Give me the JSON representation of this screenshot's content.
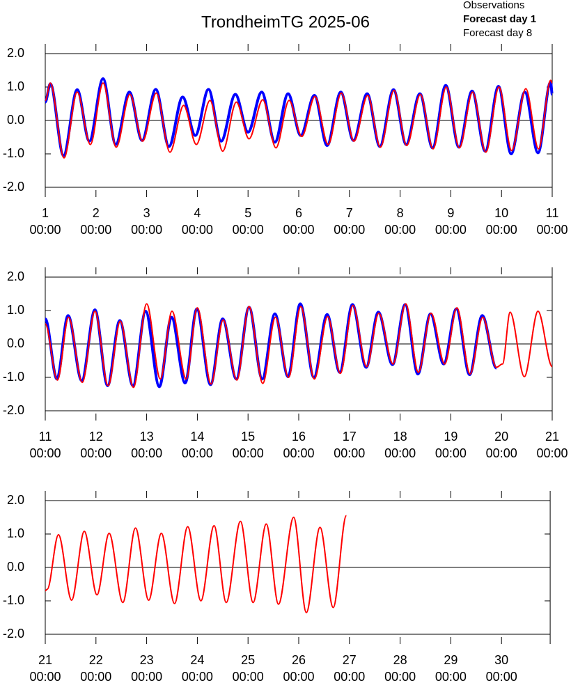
{
  "chart_data": [
    {
      "type": "line",
      "title": "TrondheimTG 2025-06",
      "xlim": [
        1,
        11
      ],
      "ylim": [
        -2,
        2
      ],
      "hline": 0,
      "xticks": [
        {
          "value": 1,
          "label": [
            "1",
            "00:00"
          ]
        },
        {
          "value": 2,
          "label": [
            "2",
            "00:00"
          ]
        },
        {
          "value": 3,
          "label": [
            "3",
            "00:00"
          ]
        },
        {
          "value": 4,
          "label": [
            "4",
            "00:00"
          ]
        },
        {
          "value": 5,
          "label": [
            "5",
            "00:00"
          ]
        },
        {
          "value": 6,
          "label": [
            "6",
            "00:00"
          ]
        },
        {
          "value": 7,
          "label": [
            "7",
            "00:00"
          ]
        },
        {
          "value": 8,
          "label": [
            "8",
            "00:00"
          ]
        },
        {
          "value": 9,
          "label": [
            "9",
            "00:00"
          ]
        },
        {
          "value": 10,
          "label": [
            "10",
            "00:00"
          ]
        },
        {
          "value": 11,
          "label": [
            "11",
            "00:00"
          ]
        }
      ],
      "yticks": [
        {
          "value": 2,
          "label": "2.0"
        },
        {
          "value": 1,
          "label": "1.0"
        },
        {
          "value": 0,
          "label": "0.0"
        },
        {
          "value": -1,
          "label": "-1.0"
        },
        {
          "value": -2,
          "label": "-2.0"
        }
      ],
      "series": [
        {
          "name": "Observations",
          "color": "#000000",
          "width": 1,
          "x": [],
          "values": []
        },
        {
          "name": "Forecast day 1",
          "color": "#0000ff",
          "width": 4,
          "x": [
            1.0,
            1.1,
            1.36,
            1.63,
            1.87,
            2.14,
            2.39,
            2.66,
            2.91,
            3.18,
            3.44,
            3.71,
            3.96,
            4.22,
            4.47,
            4.75,
            5.0,
            5.27,
            5.53,
            5.79,
            6.04,
            6.31,
            6.56,
            6.83,
            7.08,
            7.35,
            7.6,
            7.87,
            8.12,
            8.39,
            8.64,
            8.9,
            9.16,
            9.42,
            9.68,
            9.94,
            10.19,
            10.46,
            10.72,
            10.97,
            11.0
          ],
          "values": [
            0.55,
            1.1,
            -1.05,
            0.92,
            -0.62,
            1.25,
            -0.72,
            0.85,
            -0.6,
            0.93,
            -0.78,
            0.7,
            -0.45,
            0.93,
            -0.62,
            0.78,
            -0.35,
            0.85,
            -0.65,
            0.8,
            -0.45,
            0.75,
            -0.75,
            0.85,
            -0.6,
            0.8,
            -0.78,
            0.92,
            -0.72,
            0.8,
            -0.82,
            1.05,
            -0.8,
            0.88,
            -0.92,
            1.02,
            -1.0,
            0.85,
            -0.97,
            1.15,
            0.78
          ]
        },
        {
          "name": "Forecast day 8",
          "color": "#ff0000",
          "width": 2,
          "x": [
            1.0,
            1.1,
            1.37,
            1.63,
            1.89,
            2.14,
            2.4,
            2.67,
            2.92,
            3.19,
            3.46,
            3.73,
            3.98,
            4.25,
            4.5,
            4.77,
            5.02,
            5.29,
            5.55,
            5.81,
            6.06,
            6.32,
            6.58,
            6.84,
            7.09,
            7.36,
            7.61,
            7.88,
            8.13,
            8.4,
            8.65,
            8.91,
            9.17,
            9.43,
            9.69,
            9.95,
            10.2,
            10.48,
            10.73,
            10.97,
            11.0
          ],
          "values": [
            0.6,
            1.12,
            -1.12,
            0.85,
            -0.72,
            1.12,
            -0.8,
            0.78,
            -0.62,
            0.82,
            -0.95,
            0.45,
            -0.72,
            0.6,
            -0.92,
            0.55,
            -0.55,
            0.62,
            -0.82,
            0.6,
            -0.48,
            0.72,
            -0.72,
            0.82,
            -0.62,
            0.75,
            -0.8,
            0.9,
            -0.75,
            0.78,
            -0.85,
            1.0,
            -0.82,
            0.85,
            -0.95,
            1.0,
            -0.9,
            0.95,
            -0.85,
            1.2,
            1.12
          ]
        }
      ]
    },
    {
      "type": "line",
      "xlim": [
        11,
        21
      ],
      "ylim": [
        -2,
        2
      ],
      "hline": 0,
      "xticks": [
        {
          "value": 11,
          "label": [
            "11",
            "00:00"
          ]
        },
        {
          "value": 12,
          "label": [
            "12",
            "00:00"
          ]
        },
        {
          "value": 13,
          "label": [
            "13",
            "00:00"
          ]
        },
        {
          "value": 14,
          "label": [
            "14",
            "00:00"
          ]
        },
        {
          "value": 15,
          "label": [
            "15",
            "00:00"
          ]
        },
        {
          "value": 16,
          "label": [
            "16",
            "00:00"
          ]
        },
        {
          "value": 17,
          "label": [
            "17",
            "00:00"
          ]
        },
        {
          "value": 18,
          "label": [
            "18",
            "00:00"
          ]
        },
        {
          "value": 19,
          "label": [
            "19",
            "00:00"
          ]
        },
        {
          "value": 20,
          "label": [
            "20",
            "00:00"
          ]
        },
        {
          "value": 21,
          "label": [
            "21",
            "00:00"
          ]
        }
      ],
      "yticks": [
        {
          "value": 2,
          "label": "2.0"
        },
        {
          "value": 1,
          "label": "1.0"
        },
        {
          "value": 0,
          "label": "0.0"
        },
        {
          "value": -1,
          "label": "-1.0"
        },
        {
          "value": -2,
          "label": "-2.0"
        }
      ],
      "series": [
        {
          "color": "#0000ff",
          "width": 4,
          "x": [
            11.0,
            11.23,
            11.45,
            11.72,
            11.98,
            12.23,
            12.47,
            12.73,
            12.98,
            13.25,
            13.49,
            13.76,
            13.99,
            14.26,
            14.5,
            14.77,
            15.02,
            15.28,
            15.53,
            15.79,
            16.03,
            16.3,
            16.56,
            16.81,
            17.06,
            17.33,
            17.57,
            17.85,
            18.1,
            18.35,
            18.6,
            18.86,
            19.11,
            19.37,
            19.62,
            19.9
          ],
          "values": [
            0.75,
            -1.05,
            0.85,
            -1.1,
            1.02,
            -1.25,
            0.7,
            -1.25,
            0.98,
            -1.28,
            0.8,
            -1.17,
            1.05,
            -1.22,
            0.75,
            -1.05,
            1.1,
            -1.05,
            0.9,
            -0.98,
            1.2,
            -1.0,
            0.88,
            -0.85,
            1.18,
            -0.7,
            0.95,
            -0.62,
            1.18,
            -0.9,
            0.9,
            -0.6,
            1.05,
            -0.92,
            0.85,
            -0.72
          ]
        },
        {
          "color": "#ff0000",
          "width": 2,
          "x": [
            11.0,
            11.24,
            11.46,
            11.73,
            11.98,
            12.24,
            12.48,
            12.74,
            13.0,
            13.27,
            13.5,
            13.78,
            14.0,
            14.27,
            14.51,
            14.78,
            15.02,
            15.29,
            15.54,
            15.8,
            16.04,
            16.31,
            16.57,
            16.82,
            17.07,
            17.34,
            17.58,
            17.86,
            18.11,
            18.36,
            18.61,
            18.88,
            19.12,
            19.38,
            19.63,
            19.9,
            20.02,
            20.17,
            20.45,
            20.72,
            21.0
          ],
          "values": [
            0.6,
            -1.08,
            0.8,
            -1.15,
            0.98,
            -1.25,
            0.68,
            -1.3,
            1.2,
            -1.05,
            0.98,
            -1.05,
            1.08,
            -1.2,
            0.72,
            -1.08,
            1.12,
            -1.18,
            0.8,
            -1.0,
            1.12,
            -1.05,
            0.82,
            -0.88,
            1.15,
            -0.68,
            0.92,
            -0.6,
            1.2,
            -0.85,
            0.92,
            -0.6,
            1.08,
            -0.9,
            0.8,
            -0.7,
            -0.6,
            0.95,
            -0.98,
            0.98,
            -0.68
          ]
        }
      ]
    },
    {
      "type": "line",
      "xlim": [
        21,
        30.96
      ],
      "ylim": [
        -2,
        2
      ],
      "hline": 0,
      "xticks": [
        {
          "value": 21,
          "label": [
            "21",
            "00:00"
          ]
        },
        {
          "value": 22,
          "label": [
            "22",
            "00:00"
          ]
        },
        {
          "value": 23,
          "label": [
            "23",
            "00:00"
          ]
        },
        {
          "value": 24,
          "label": [
            "24",
            "00:00"
          ]
        },
        {
          "value": 25,
          "label": [
            "25",
            "00:00"
          ]
        },
        {
          "value": 26,
          "label": [
            "26",
            "00:00"
          ]
        },
        {
          "value": 27,
          "label": [
            "27",
            "00:00"
          ]
        },
        {
          "value": 28,
          "label": [
            "28",
            "00:00"
          ]
        },
        {
          "value": 29,
          "label": [
            "29",
            "00:00"
          ]
        },
        {
          "value": 30,
          "label": [
            "30",
            "00:00"
          ]
        }
      ],
      "yticks": [
        {
          "value": 2,
          "label": "2.0"
        },
        {
          "value": 1,
          "label": "1.0"
        },
        {
          "value": 0,
          "label": "0.0"
        },
        {
          "value": -1,
          "label": "-1.0"
        },
        {
          "value": -2,
          "label": "-2.0"
        }
      ],
      "series": [
        {
          "color": "#ff0000",
          "width": 2,
          "x": [
            21.0,
            21.04,
            21.26,
            21.52,
            21.77,
            22.02,
            22.26,
            22.53,
            22.78,
            23.04,
            23.29,
            23.55,
            23.81,
            24.07,
            24.33,
            24.57,
            24.85,
            25.1,
            25.36,
            25.6,
            25.9,
            26.15,
            26.42,
            26.68,
            26.94
          ],
          "values": [
            -0.7,
            -0.65,
            0.98,
            -0.98,
            1.08,
            -0.82,
            1.02,
            -1.05,
            1.18,
            -0.98,
            1.02,
            -1.08,
            1.22,
            -1.0,
            1.25,
            -1.05,
            1.38,
            -1.05,
            1.3,
            -1.1,
            1.5,
            -1.35,
            1.2,
            -1.2,
            1.55
          ]
        }
      ]
    }
  ]
}
